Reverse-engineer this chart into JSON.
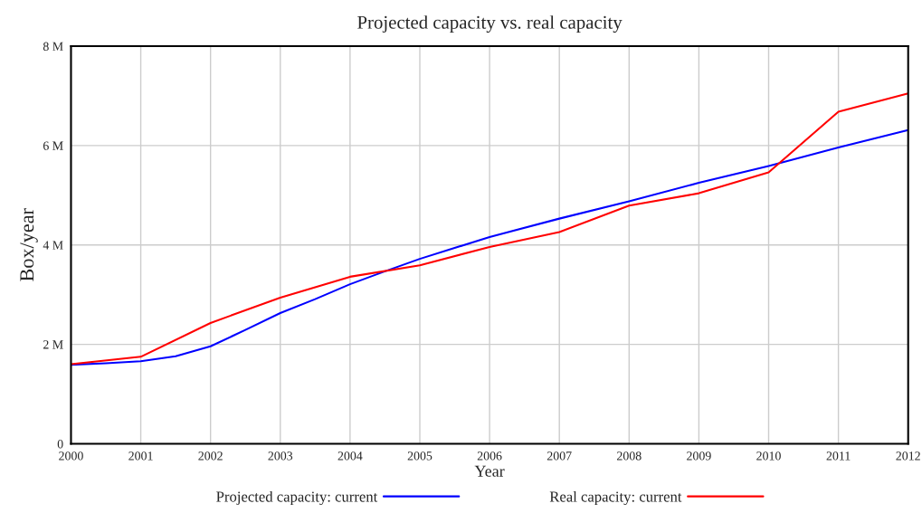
{
  "chart_data": {
    "type": "line",
    "title": "Projected capacity vs. real capacity",
    "xlabel": "Year",
    "ylabel": "Box/year",
    "x": [
      2000,
      2000.5,
      2001,
      2001.5,
      2002,
      2002.5,
      2003,
      2003.5,
      2004,
      2004.5,
      2005,
      2006,
      2007,
      2008,
      2009,
      2010,
      2011,
      2012
    ],
    "series": [
      {
        "name": "Projected capacity: current",
        "color": "#0000ff",
        "values": [
          1590000,
          1620000,
          1660000,
          1760000,
          1960000,
          2290000,
          2630000,
          2910000,
          3210000,
          3470000,
          3720000,
          4160000,
          4530000,
          4880000,
          5250000,
          5590000,
          5960000,
          6310000
        ]
      },
      {
        "name": "Real capacity: current",
        "color": "#ff0000",
        "x": [
          2000,
          2001,
          2002,
          2003,
          2004,
          2005,
          2006,
          2007,
          2008,
          2009,
          2010,
          2011,
          2012
        ],
        "values": [
          1600000,
          1750000,
          2430000,
          2940000,
          3360000,
          3590000,
          3960000,
          4260000,
          4790000,
          5040000,
          5460000,
          6680000,
          7050000
        ]
      }
    ],
    "xlim": [
      2000,
      2012
    ],
    "xticks": [
      2000,
      2001,
      2002,
      2003,
      2004,
      2005,
      2006,
      2007,
      2008,
      2009,
      2010,
      2011,
      2012
    ],
    "ylim": [
      0,
      8000000
    ],
    "yticks": [
      {
        "value": 0,
        "label": "0"
      },
      {
        "value": 2000000,
        "label": "2 M"
      },
      {
        "value": 4000000,
        "label": "4 M"
      },
      {
        "value": 6000000,
        "label": "6 M"
      },
      {
        "value": 8000000,
        "label": "8 M"
      }
    ],
    "grid": true,
    "legend": "bottom",
    "marker": "none",
    "line_style": "solid"
  }
}
